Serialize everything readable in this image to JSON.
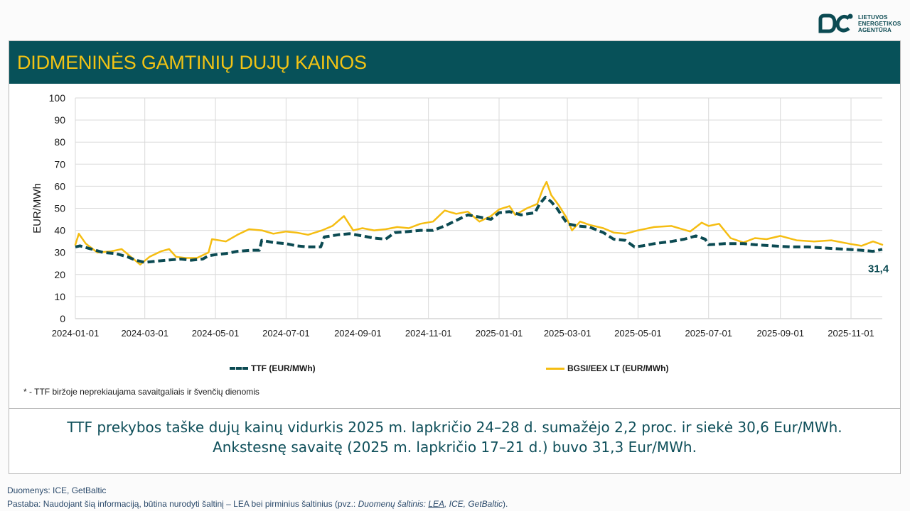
{
  "header": {
    "title": "DIDMENINĖS GAMTINIŲ DUJŲ KAINOS",
    "logo_lines": [
      "LIETUVOS",
      "ENERGETIKOS",
      "AGENTŪRA"
    ]
  },
  "colors": {
    "ttf": "#0b4a52",
    "bgsi": "#f5bd12",
    "title_bg": "#075159",
    "title_text": "#f2c314"
  },
  "chart_data": {
    "type": "line",
    "title": "",
    "xlabel": "",
    "ylabel": "EUR/MWh",
    "ylim": [
      0,
      100
    ],
    "yticks": [
      0,
      10,
      20,
      30,
      40,
      50,
      60,
      70,
      80,
      90,
      100
    ],
    "xticks": [
      "2024-01-01",
      "2024-03-01",
      "2024-05-01",
      "2024-07-01",
      "2024-09-01",
      "2024-11-01",
      "2025-01-01",
      "2025-03-01",
      "2025-05-01",
      "2025-07-01",
      "2025-09-01",
      "2025-11-01"
    ],
    "x_domain": [
      "2024-01-01",
      "2025-11-28"
    ],
    "end_label": "31,4",
    "series": [
      {
        "name": "TTF (EUR/MWh)",
        "style": "dashed",
        "points": [
          [
            "2024-01-01",
            32.5
          ],
          [
            "2024-01-05",
            33
          ],
          [
            "2024-01-15",
            31.5
          ],
          [
            "2024-01-25",
            30
          ],
          [
            "2024-02-05",
            29.5
          ],
          [
            "2024-02-15",
            28
          ],
          [
            "2024-02-22",
            26.5
          ],
          [
            "2024-03-01",
            25.5
          ],
          [
            "2024-03-10",
            26
          ],
          [
            "2024-03-20",
            26.5
          ],
          [
            "2024-04-01",
            27
          ],
          [
            "2024-04-10",
            26.5
          ],
          [
            "2024-04-20",
            27
          ],
          [
            "2024-04-25",
            28.5
          ],
          [
            "2024-05-01",
            29
          ],
          [
            "2024-05-10",
            29.5
          ],
          [
            "2024-05-20",
            30.5
          ],
          [
            "2024-06-01",
            31
          ],
          [
            "2024-06-08",
            31
          ],
          [
            "2024-06-10",
            35.5
          ],
          [
            "2024-06-20",
            34.5
          ],
          [
            "2024-07-01",
            34
          ],
          [
            "2024-07-10",
            33
          ],
          [
            "2024-07-20",
            32.5
          ],
          [
            "2024-07-31",
            32.5
          ],
          [
            "2024-08-03",
            37
          ],
          [
            "2024-08-15",
            38
          ],
          [
            "2024-08-25",
            38.5
          ],
          [
            "2024-09-05",
            37.5
          ],
          [
            "2024-09-15",
            36.5
          ],
          [
            "2024-09-25",
            36
          ],
          [
            "2024-10-03",
            39
          ],
          [
            "2024-10-15",
            39.5
          ],
          [
            "2024-10-25",
            40
          ],
          [
            "2024-11-05",
            40
          ],
          [
            "2024-11-15",
            42
          ],
          [
            "2024-11-25",
            44.5
          ],
          [
            "2024-12-05",
            47
          ],
          [
            "2024-12-15",
            46
          ],
          [
            "2024-12-25",
            45
          ],
          [
            "2025-01-01",
            48
          ],
          [
            "2025-01-10",
            48.5
          ],
          [
            "2025-01-20",
            47
          ],
          [
            "2025-02-01",
            48
          ],
          [
            "2025-02-05",
            52
          ],
          [
            "2025-02-10",
            55
          ],
          [
            "2025-02-15",
            53
          ],
          [
            "2025-02-20",
            50
          ],
          [
            "2025-02-25",
            46
          ],
          [
            "2025-03-01",
            43
          ],
          [
            "2025-03-10",
            42
          ],
          [
            "2025-03-20",
            41.5
          ],
          [
            "2025-04-01",
            39
          ],
          [
            "2025-04-10",
            36
          ],
          [
            "2025-04-20",
            35.5
          ],
          [
            "2025-04-28",
            32.5
          ],
          [
            "2025-05-05",
            33
          ],
          [
            "2025-05-15",
            34
          ],
          [
            "2025-05-30",
            35
          ],
          [
            "2025-06-10",
            36
          ],
          [
            "2025-06-20",
            37.5
          ],
          [
            "2025-06-28",
            36
          ],
          [
            "2025-07-01",
            33.5
          ],
          [
            "2025-07-15",
            34
          ],
          [
            "2025-07-31",
            34
          ],
          [
            "2025-08-10",
            33.5
          ],
          [
            "2025-08-25",
            33
          ],
          [
            "2025-09-10",
            32.5
          ],
          [
            "2025-09-25",
            32.5
          ],
          [
            "2025-10-10",
            32
          ],
          [
            "2025-10-25",
            31.5
          ],
          [
            "2025-11-10",
            31
          ],
          [
            "2025-11-20",
            30.5
          ],
          [
            "2025-11-28",
            31.4
          ]
        ]
      },
      {
        "name": "BGSI/EEX LT (EUR/MWh)",
        "style": "solid",
        "points": [
          [
            "2024-01-01",
            33.5
          ],
          [
            "2024-01-04",
            38.5
          ],
          [
            "2024-01-10",
            34
          ],
          [
            "2024-01-20",
            30
          ],
          [
            "2024-02-01",
            30.5
          ],
          [
            "2024-02-10",
            31.5
          ],
          [
            "2024-02-18",
            28
          ],
          [
            "2024-02-26",
            24.5
          ],
          [
            "2024-03-05",
            28
          ],
          [
            "2024-03-15",
            30.5
          ],
          [
            "2024-03-22",
            31.5
          ],
          [
            "2024-03-28",
            28
          ],
          [
            "2024-04-05",
            27.5
          ],
          [
            "2024-04-15",
            27.5
          ],
          [
            "2024-04-25",
            30
          ],
          [
            "2024-04-28",
            36
          ],
          [
            "2024-05-10",
            35
          ],
          [
            "2024-05-20",
            38
          ],
          [
            "2024-05-30",
            40.5
          ],
          [
            "2024-06-10",
            40
          ],
          [
            "2024-06-20",
            38.5
          ],
          [
            "2024-07-01",
            39.5
          ],
          [
            "2024-07-10",
            39
          ],
          [
            "2024-07-20",
            38
          ],
          [
            "2024-08-01",
            40
          ],
          [
            "2024-08-10",
            42
          ],
          [
            "2024-08-20",
            46.5
          ],
          [
            "2024-08-28",
            40
          ],
          [
            "2024-09-05",
            41
          ],
          [
            "2024-09-15",
            40
          ],
          [
            "2024-09-25",
            40.5
          ],
          [
            "2024-10-05",
            41.5
          ],
          [
            "2024-10-15",
            41
          ],
          [
            "2024-10-25",
            43
          ],
          [
            "2024-11-05",
            44
          ],
          [
            "2024-11-15",
            49
          ],
          [
            "2024-11-25",
            47.5
          ],
          [
            "2024-12-05",
            48.5
          ],
          [
            "2024-12-15",
            44
          ],
          [
            "2024-12-25",
            46.5
          ],
          [
            "2025-01-01",
            49.5
          ],
          [
            "2025-01-10",
            51
          ],
          [
            "2025-01-15",
            47
          ],
          [
            "2025-01-25",
            50
          ],
          [
            "2025-02-03",
            52
          ],
          [
            "2025-02-08",
            59
          ],
          [
            "2025-02-11",
            62
          ],
          [
            "2025-02-15",
            56
          ],
          [
            "2025-02-22",
            51
          ],
          [
            "2025-02-28",
            46
          ],
          [
            "2025-03-05",
            40
          ],
          [
            "2025-03-12",
            44
          ],
          [
            "2025-03-20",
            42.5
          ],
          [
            "2025-04-01",
            41
          ],
          [
            "2025-04-10",
            39
          ],
          [
            "2025-04-20",
            38.5
          ],
          [
            "2025-05-01",
            40
          ],
          [
            "2025-05-15",
            41.5
          ],
          [
            "2025-05-30",
            42
          ],
          [
            "2025-06-15",
            39.5
          ],
          [
            "2025-06-25",
            43.5
          ],
          [
            "2025-07-01",
            42
          ],
          [
            "2025-07-10",
            43
          ],
          [
            "2025-07-20",
            36.5
          ],
          [
            "2025-07-31",
            34.5
          ],
          [
            "2025-08-10",
            36.5
          ],
          [
            "2025-08-20",
            36
          ],
          [
            "2025-09-01",
            37.5
          ],
          [
            "2025-09-15",
            35.5
          ],
          [
            "2025-09-30",
            35
          ],
          [
            "2025-10-15",
            35.5
          ],
          [
            "2025-10-30",
            34
          ],
          [
            "2025-11-10",
            33
          ],
          [
            "2025-11-20",
            35
          ],
          [
            "2025-11-28",
            33.5
          ]
        ]
      }
    ]
  },
  "legend": {
    "ttf": "TTF (EUR/MWh)",
    "bgsi": "BGSI/EEX LT (EUR/MWh)"
  },
  "footnote": "* - TTF biržoje neprekiaujama savaitgaliais ir švenčių dienomis",
  "summary": {
    "line1": "TTF prekybos taške dujų kainų vidurkis 2025 m. lapkričio 24–28 d. sumažėjo 2,2 proc. ir siekė 30,6 Eur/MWh.",
    "line2": "Ankstesnę savaitę (2025 m. lapkričio 17–21 d.) buvo 31,3 Eur/MWh."
  },
  "source": {
    "line1": "Duomenys: ICE, GetBaltic",
    "line2_prefix": "Pastaba: Naudojant šią informaciją, būtina nurodyti šaltinį – LEA bei pirminius šaltinius (pvz.: ",
    "line2_italic": "Duomenų šaltinis: ",
    "line2_link": "LEA",
    "line2_rest": ", ICE, GetBaltic",
    "line2_suffix": ")."
  }
}
